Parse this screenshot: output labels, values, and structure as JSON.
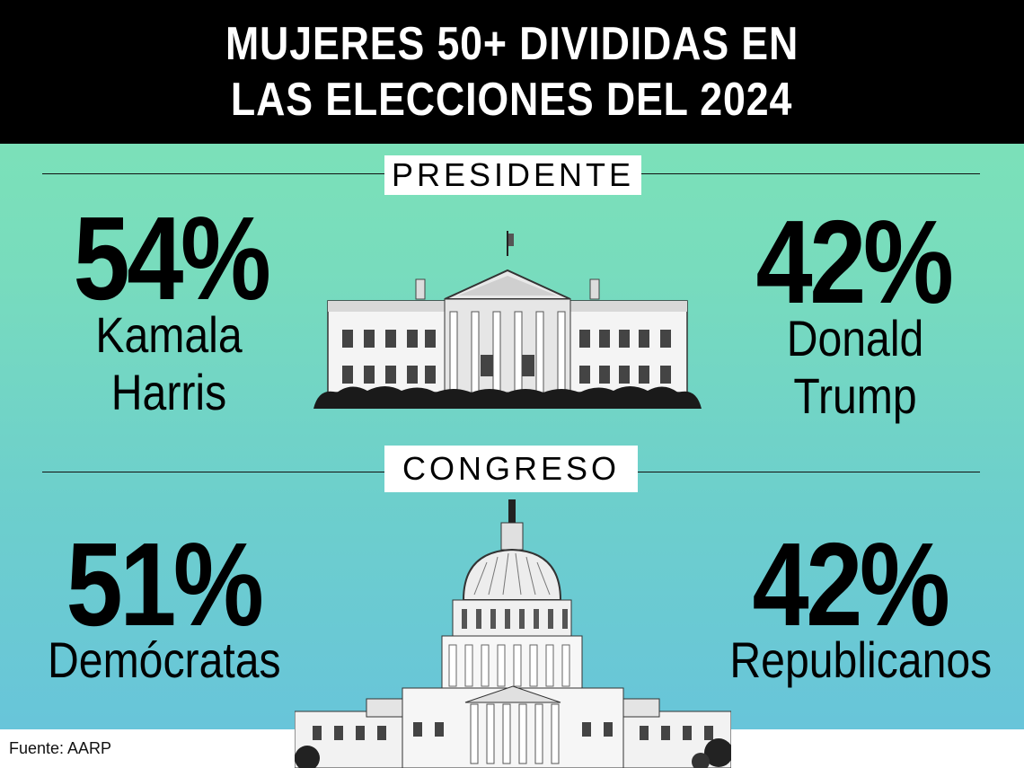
{
  "header": {
    "line1": "MUJERES 50+ DIVIDIDAS EN",
    "line2": "LAS ELECCIONES DEL 2024"
  },
  "president": {
    "label": "PRESIDENTE",
    "left": {
      "pct": "54%",
      "name_line1": "Kamala",
      "name_line2": "Harris"
    },
    "right": {
      "pct": "42%",
      "name_line1": "Donald",
      "name_line2": "Trump"
    },
    "illustration_icon": "white-house-icon"
  },
  "congress": {
    "label": "CONGRESO",
    "left": {
      "pct": "51%",
      "name": "Demócratas"
    },
    "right": {
      "pct": "42%",
      "name": "Republicanos"
    },
    "illustration_icon": "capitol-building-icon"
  },
  "source": "Fuente: AARP",
  "colors": {
    "header_bg": "#000000",
    "gradient_top": "#7fe6b4",
    "gradient_bottom": "#67c3dc"
  }
}
